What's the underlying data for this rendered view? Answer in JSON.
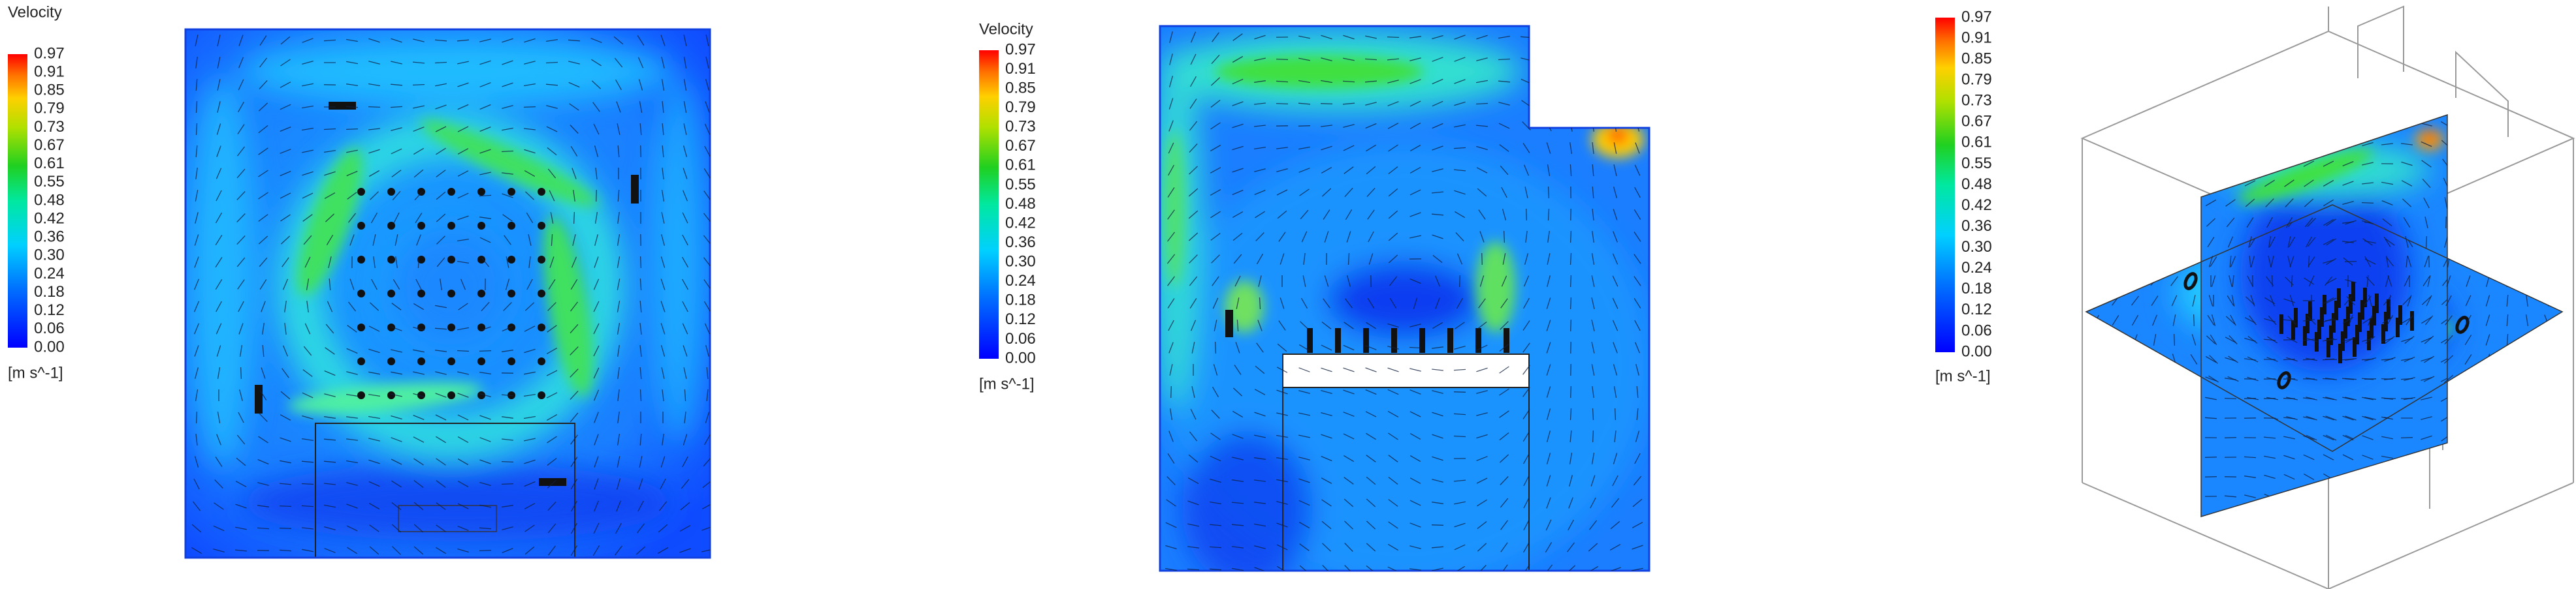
{
  "panels": [
    {
      "legend_title": "Velocity",
      "legend_ticks": [
        "0.97",
        "0.91",
        "0.85",
        "0.79",
        "0.73",
        "0.67",
        "0.61",
        "0.55",
        "0.48",
        "0.42",
        "0.36",
        "0.30",
        "0.24",
        "0.18",
        "0.12",
        "0.06",
        "0.00"
      ],
      "unit": "[m s^-1]"
    },
    {
      "legend_title": "Velocity",
      "legend_ticks": [
        "0.97",
        "0.91",
        "0.85",
        "0.79",
        "0.73",
        "0.67",
        "0.61",
        "0.55",
        "0.48",
        "0.42",
        "0.36",
        "0.30",
        "0.24",
        "0.18",
        "0.12",
        "0.06",
        "0.00"
      ],
      "unit": "[m s^-1]"
    },
    {
      "legend_ticks": [
        "0.97",
        "0.91",
        "0.85",
        "0.79",
        "0.73",
        "0.67",
        "0.61",
        "0.55",
        "0.48",
        "0.42",
        "0.36",
        "0.30",
        "0.24",
        "0.18",
        "0.12",
        "0.06",
        "0.00"
      ],
      "unit": "[m s^-1]"
    }
  ]
}
